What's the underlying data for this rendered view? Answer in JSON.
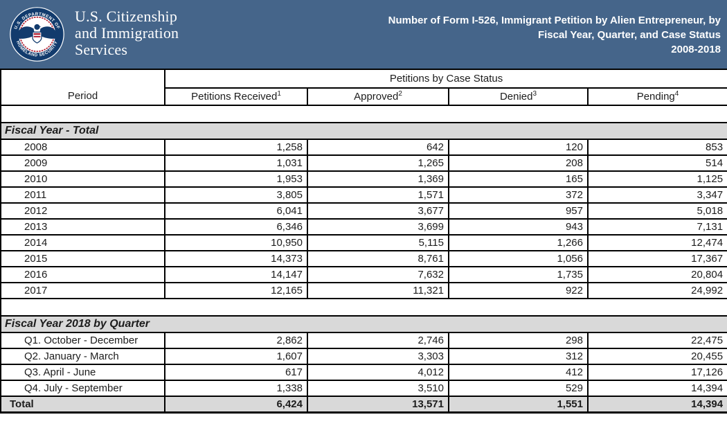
{
  "banner": {
    "background_color": "#45658a",
    "agency_line1": "U.S. Citizenship",
    "agency_line2": "and Immigration",
    "agency_line3": "Services",
    "title_line1": "Number of Form I-526, Immigrant Petition by Alien Entrepreneur, by",
    "title_line2": "Fiscal Year, Quarter, and Case Status",
    "title_line3": "2008-2018",
    "seal": {
      "top_text": "U.S. DEPARTMENT OF",
      "bottom_text": "HOMELAND SECURITY",
      "navy_color": "#123b6d",
      "red_color": "#b22234"
    }
  },
  "table": {
    "group_header": "Petitions by Case Status",
    "columns": [
      "Period",
      "Petitions Received",
      "Approved",
      "Denied",
      "Pending"
    ],
    "column_superscripts": [
      "",
      "1",
      "2",
      "3",
      "4"
    ],
    "section_gray": "#d9d9d9",
    "sections": [
      {
        "label": "Fiscal Year - Total",
        "rows": [
          [
            "2008",
            "1,258",
            "642",
            "120",
            "853"
          ],
          [
            "2009",
            "1,031",
            "1,265",
            "208",
            "514"
          ],
          [
            "2010",
            "1,953",
            "1,369",
            "165",
            "1,125"
          ],
          [
            "2011",
            "3,805",
            "1,571",
            "372",
            "3,347"
          ],
          [
            "2012",
            "6,041",
            "3,677",
            "957",
            "5,018"
          ],
          [
            "2013",
            "6,346",
            "3,699",
            "943",
            "7,131"
          ],
          [
            "2014",
            "10,950",
            "5,115",
            "1,266",
            "12,474"
          ],
          [
            "2015",
            "14,373",
            "8,761",
            "1,056",
            "17,367"
          ],
          [
            "2016",
            "14,147",
            "7,632",
            "1,735",
            "20,804"
          ],
          [
            "2017",
            "12,165",
            "11,321",
            "922",
            "24,992"
          ]
        ]
      },
      {
        "label": "Fiscal Year 2018 by Quarter",
        "rows": [
          [
            "Q1. October - December",
            "2,862",
            "2,746",
            "298",
            "22,475"
          ],
          [
            "Q2. January - March",
            "1,607",
            "3,303",
            "312",
            "20,455"
          ],
          [
            "Q3. April - June",
            "617",
            "4,012",
            "412",
            "17,126"
          ],
          [
            "Q4. July - September",
            "1,338",
            "3,510",
            "529",
            "14,394"
          ]
        ],
        "total": [
          "Total",
          "6,424",
          "13,571",
          "1,551",
          "14,394"
        ]
      }
    ]
  }
}
